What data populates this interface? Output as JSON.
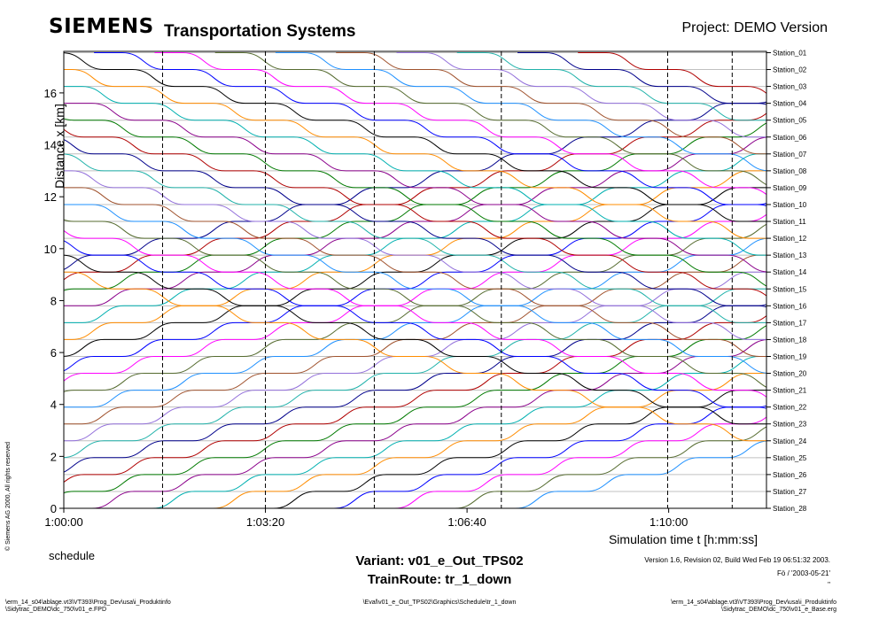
{
  "header": {
    "logo": "SIEMENS",
    "company": "Transportation Systems",
    "project": "Project: DEMO Version"
  },
  "footer": {
    "copyright": "© Siemens AG 2000, All rights reserved",
    "caption": "schedule",
    "variant": "Variant: v01_e_Out_TPS02",
    "train_route": "TrainRoute: tr_1_down",
    "version": "Version 1.6, Revision 02, Build Wed Feb 19 06:51:32 2003.",
    "initials": "Fö / '2003-05-21'",
    "quote": "\"",
    "path_left_1": "\\erm_14_s04\\ablage.vt3\\VT393\\Prog_Dev\\usa\\i_Produktinfo",
    "path_left_2": "\\Sidytrac_DEMO\\dc_750\\v01_e.FPD",
    "path_mid": "\\Eval\\v01_e_Out_TPS02\\Graphics\\Schedule\\tr_1_down",
    "path_right_1": "\\erm_14_s04\\ablage.vt3\\VT393\\Prog_Dev\\usa\\i_Produktinfo",
    "path_right_2": "\\Sidytrac_DEMO\\dc_750\\v01_e_Base.erg"
  },
  "chart_data": {
    "type": "line",
    "title": "",
    "xlabel": "Simulation time t [h:mm:ss]",
    "ylabel": "Distance x [km]",
    "x_ticks": [
      "1:00:00",
      "1:03:20",
      "1:06:40",
      "1:10:00"
    ],
    "x_tick_seconds": [
      0,
      200,
      400,
      600
    ],
    "xlim_seconds": [
      0,
      697
    ],
    "y_ticks": [
      0,
      2,
      4,
      6,
      8,
      10,
      12,
      14,
      16
    ],
    "ylim": [
      0,
      17.6
    ],
    "stations": [
      "Station_28",
      "Station_27",
      "Station_26",
      "Station_25",
      "Station_24",
      "Station_23",
      "Station_22",
      "Station_21",
      "Station_20",
      "Station_19",
      "Station_18",
      "Station_17",
      "Station_16",
      "Station_15",
      "Station_14",
      "Station_13",
      "Station_12",
      "Station_11",
      "Station_10",
      "Station_09",
      "Station_08",
      "Station_07",
      "Station_06",
      "Station_05",
      "Station_04",
      "Station_03",
      "Station_02",
      "Station_01"
    ],
    "station_km": [
      0,
      0.65,
      1.3,
      1.95,
      2.6,
      3.25,
      3.9,
      4.55,
      5.2,
      5.85,
      6.5,
      7.15,
      7.8,
      8.45,
      9.1,
      9.75,
      10.4,
      11.05,
      11.7,
      12.35,
      13.0,
      13.65,
      14.3,
      14.95,
      15.6,
      16.25,
      16.9,
      17.55
    ],
    "dashed_time_markers_seconds": [
      98,
      200,
      308,
      434,
      599,
      663
    ],
    "grid": "horizontal at stations",
    "trains_up": {
      "count": 25,
      "first_departure_s": -1020,
      "headway_s": 60,
      "dwell_s": 28,
      "run_between_stations_s": 42
    },
    "trains_down": {
      "count": 25,
      "first_departure_s": -930,
      "headway_s": 60,
      "dwell_s": 28,
      "run_between_stations_s": 42
    },
    "colors": [
      "#00008b",
      "#b00000",
      "#007a00",
      "#8b008b",
      "#00b0b0",
      "#ff8c00",
      "#000000",
      "#0000ff",
      "#ff00ff",
      "#556b2f",
      "#1e90ff",
      "#a0522d",
      "#9370db",
      "#20b2aa"
    ]
  }
}
